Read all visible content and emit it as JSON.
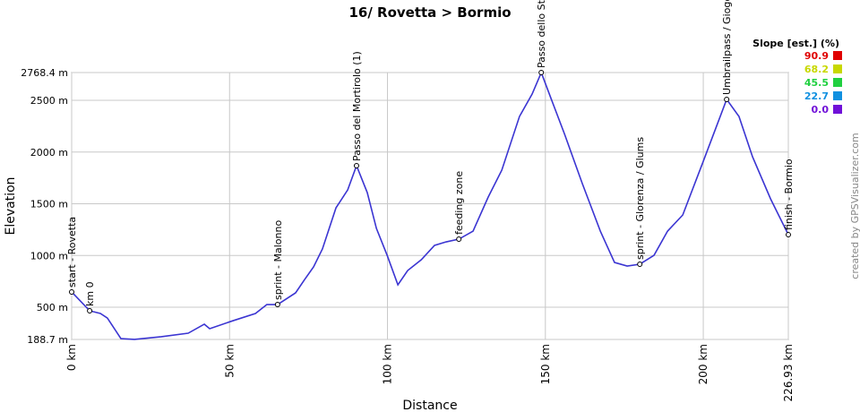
{
  "chart_data": {
    "type": "line",
    "title": "16/ Rovetta > Bormio",
    "x_label": "Distance",
    "y_label": "Elevation",
    "credit": "created by GPSVisualizer.com",
    "xlim": [
      0,
      226.93
    ],
    "ylim": [
      188.7,
      2768.4
    ],
    "xticks": [
      {
        "value": 0,
        "label": "0 km"
      },
      {
        "value": 50,
        "label": "50 km"
      },
      {
        "value": 100,
        "label": "100 km"
      },
      {
        "value": 150,
        "label": "150 km"
      },
      {
        "value": 200,
        "label": "200 km"
      },
      {
        "value": 226.93,
        "label": "226.93 km"
      }
    ],
    "yticks": [
      {
        "value": 188.7,
        "label": "188.7 m"
      },
      {
        "value": 500,
        "label": "500 m"
      },
      {
        "value": 1000,
        "label": "1000 m"
      },
      {
        "value": 1500,
        "label": "1500 m"
      },
      {
        "value": 2000,
        "label": "2000 m"
      },
      {
        "value": 2500,
        "label": "2500 m"
      },
      {
        "value": 2768.4,
        "label": "2768.4 m"
      }
    ],
    "grid": true,
    "series": [
      {
        "color": "#3b35d2",
        "x": [
          0,
          5.7,
          9.1,
          11.3,
          15.6,
          19.9,
          28.4,
          36.9,
          42,
          43.7,
          51.1,
          58.2,
          61.8,
          65.2,
          70.9,
          73.8,
          76.6,
          79.4,
          83.7,
          87.4,
          90.2,
          93.6,
          96.5,
          99.9,
          103.3,
          106.4,
          110.7,
          114.9,
          118.6,
          122.6,
          127.1,
          131.9,
          136.2,
          141.8,
          145.8,
          148.7,
          151.8,
          156.1,
          161.7,
          167.4,
          171.9,
          175.9,
          179.9,
          184.4,
          188.7,
          193.5,
          200,
          204.3,
          207.4,
          211.3,
          215.6,
          221.3,
          226.93
        ],
        "values": [
          648,
          466,
          440,
          396,
          197,
          189,
          215,
          249,
          336,
          293,
          370,
          440,
          526,
          526,
          639,
          769,
          890,
          1063,
          1461,
          1634,
          1868,
          1608,
          1262,
          1002,
          717,
          855,
          959,
          1098,
          1132,
          1158,
          1236,
          1565,
          1825,
          2344,
          2560,
          2768,
          2517,
          2171,
          1695,
          1236,
          933,
          898,
          916,
          1002,
          1236,
          1392,
          1911,
          2258,
          2509,
          2344,
          1954,
          1548,
          1201
        ]
      }
    ],
    "waypoints": [
      {
        "label": "start - Rovetta",
        "x": 0,
        "y": 648
      },
      {
        "label": "km 0",
        "x": 5.7,
        "y": 466
      },
      {
        "label": "sprint - Malonno",
        "x": 65.2,
        "y": 526
      },
      {
        "label": "Passo del Mortirolo (1)",
        "x": 90.2,
        "y": 1868
      },
      {
        "label": "feeding zone",
        "x": 122.6,
        "y": 1158
      },
      {
        "label": "Passo dello Stelvio",
        "x": 148.7,
        "y": 2768
      },
      {
        "label": "sprint - Glorenza / Glums",
        "x": 179.9,
        "y": 916
      },
      {
        "label": "Umbrailpass / Giogo",
        "x": 207.4,
        "y": 2509
      },
      {
        "label": "finish - Bormio",
        "x": 226.93,
        "y": 1201
      }
    ],
    "slope_legend": {
      "title": "Slope [est.] (%)",
      "items": [
        {
          "value": 90.9,
          "color": "#e00000"
        },
        {
          "value": 68.2,
          "color": "#c8d800"
        },
        {
          "value": 45.5,
          "color": "#20d040"
        },
        {
          "value": 22.7,
          "color": "#1090e0"
        },
        {
          "value": 0,
          "label": "0.0",
          "color": "#7010d8"
        }
      ]
    }
  }
}
